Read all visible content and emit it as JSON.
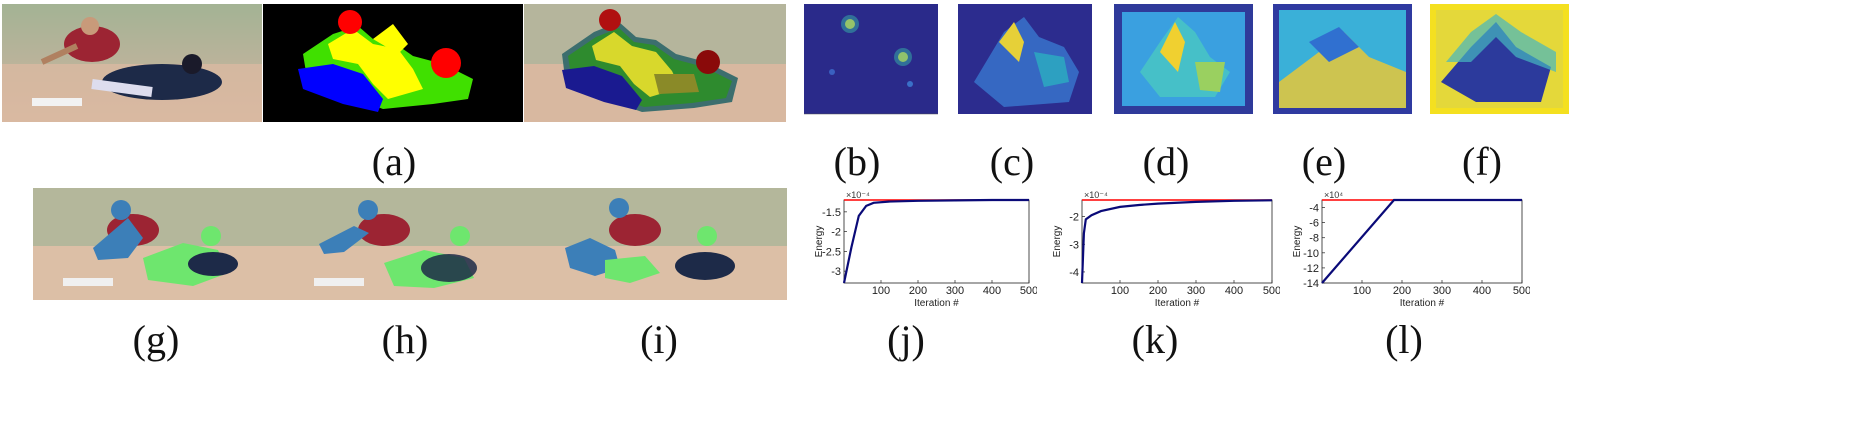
{
  "captions": {
    "a": "(a)",
    "b": "(b)",
    "c": "(c)",
    "d": "(d)",
    "e": "(e)",
    "f": "(f)",
    "g": "(g)",
    "h": "(h)",
    "i": "(i)",
    "j": "(j)",
    "k": "(k)",
    "l": "(l)"
  },
  "colors": {
    "segment_yellow": "#ffff00",
    "segment_green": "#40e000",
    "segment_blue": "#0000ff",
    "segment_red": "#ff0000",
    "overlay_blue": "#3c7fb8",
    "overlay_green": "#6ee66e",
    "energy_curve": "#0a0a78",
    "reference_line": "#ff0000"
  },
  "chart_data": [
    {
      "type": "line",
      "panel": "(j)",
      "ylabel": "Energy",
      "xlabel": "Iteration #",
      "y_multiplier": "×10⁻⁴",
      "xlim": [
        0,
        500
      ],
      "ylim": [
        -3.3,
        -1.2
      ],
      "xticks": [
        "100",
        "200",
        "300",
        "400",
        "500"
      ],
      "yticks": [
        "-1.5",
        "-2",
        "-2.5",
        "-3"
      ],
      "reference_y": -1.2,
      "series": [
        {
          "x": [
            0,
            20,
            40,
            60,
            80,
            120,
            200,
            300,
            400,
            500
          ],
          "values": [
            -3.3,
            -2.4,
            -1.6,
            -1.35,
            -1.27,
            -1.24,
            -1.22,
            -1.21,
            -1.2,
            -1.2
          ]
        }
      ]
    },
    {
      "type": "line",
      "panel": "(k)",
      "ylabel": "Energy",
      "xlabel": "Iteration #",
      "y_multiplier": "×10⁻⁴",
      "xlim": [
        0,
        500
      ],
      "ylim": [
        -4.4,
        -1.4
      ],
      "xticks": [
        "100",
        "200",
        "300",
        "400",
        "500"
      ],
      "yticks": [
        "-2",
        "-3",
        "-4"
      ],
      "reference_y": -1.4,
      "series": [
        {
          "x": [
            0,
            5,
            10,
            25,
            50,
            100,
            150,
            200,
            300,
            400,
            500
          ],
          "values": [
            -4.4,
            -2.6,
            -2.1,
            -1.95,
            -1.8,
            -1.65,
            -1.58,
            -1.53,
            -1.47,
            -1.43,
            -1.41
          ]
        }
      ]
    },
    {
      "type": "line",
      "panel": "(l)",
      "ylabel": "Energy",
      "xlabel": "Iteration #",
      "y_multiplier": "×10⁴",
      "xlim": [
        0,
        500
      ],
      "ylim": [
        -14,
        -3
      ],
      "xticks": [
        "100",
        "200",
        "300",
        "400",
        "500"
      ],
      "yticks": [
        "-4",
        "-6",
        "-8",
        "-10",
        "-12",
        "-14"
      ],
      "reference_y": -3,
      "series": [
        {
          "x": [
            0,
            180,
            500
          ],
          "values": [
            -14,
            -3,
            -3
          ]
        }
      ]
    }
  ]
}
